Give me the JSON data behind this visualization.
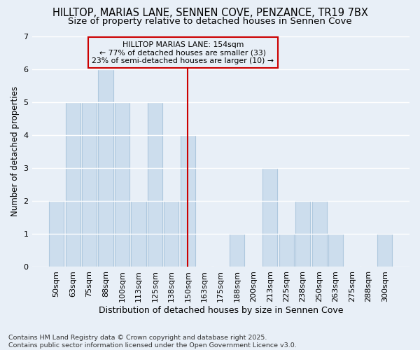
{
  "title": "HILLTOP, MARIAS LANE, SENNEN COVE, PENZANCE, TR19 7BX",
  "subtitle": "Size of property relative to detached houses in Sennen Cove",
  "xlabel": "Distribution of detached houses by size in Sennen Cove",
  "ylabel": "Number of detached properties",
  "footer": "Contains HM Land Registry data © Crown copyright and database right 2025.\nContains public sector information licensed under the Open Government Licence v3.0.",
  "categories": [
    "50sqm",
    "63sqm",
    "75sqm",
    "88sqm",
    "100sqm",
    "113sqm",
    "125sqm",
    "138sqm",
    "150sqm",
    "163sqm",
    "175sqm",
    "188sqm",
    "200sqm",
    "213sqm",
    "225sqm",
    "238sqm",
    "250sqm",
    "263sqm",
    "275sqm",
    "288sqm",
    "300sqm"
  ],
  "values": [
    2,
    5,
    5,
    6,
    5,
    2,
    5,
    2,
    4,
    0,
    0,
    1,
    0,
    3,
    1,
    2,
    2,
    1,
    0,
    0,
    1
  ],
  "bar_color": "#ccdded",
  "bar_edge_color": "#aec8de",
  "reference_line_x": 8,
  "annotation_title": "HILLTOP MARIAS LANE: 154sqm",
  "annotation_line1": "← 77% of detached houses are smaller (33)",
  "annotation_line2": "23% of semi-detached houses are larger (10) →",
  "ylim": [
    0,
    7
  ],
  "yticks": [
    0,
    1,
    2,
    3,
    4,
    5,
    6,
    7
  ],
  "background_color": "#e8eff7",
  "grid_color": "#ffffff",
  "title_fontsize": 10.5,
  "subtitle_fontsize": 9.5,
  "xlabel_fontsize": 9,
  "ylabel_fontsize": 8.5,
  "tick_fontsize": 8,
  "annotation_fontsize": 7.8,
  "footer_fontsize": 6.8
}
